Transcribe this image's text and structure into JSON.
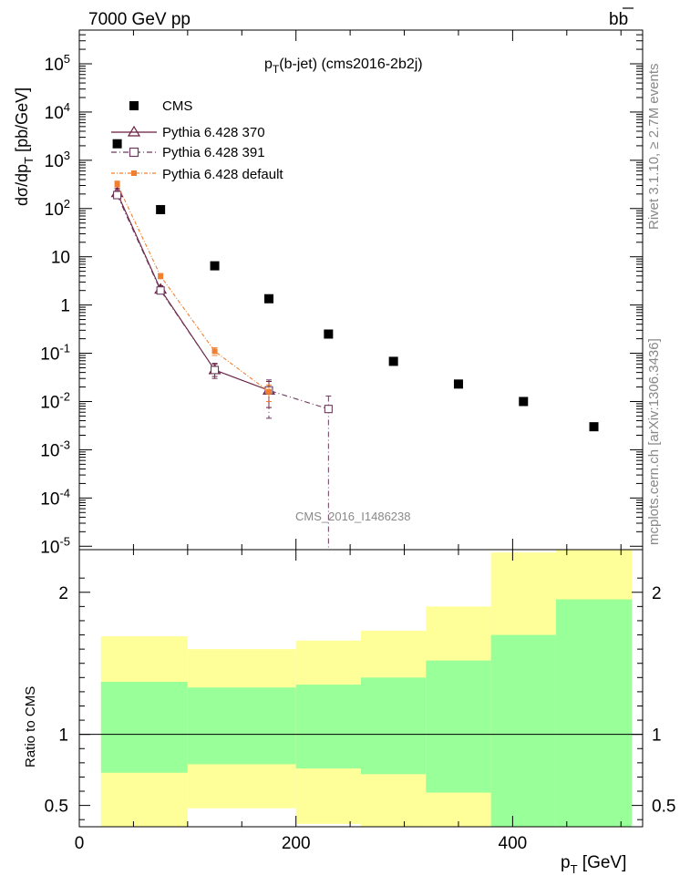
{
  "header": {
    "energy_label": "7000 GeV pp",
    "process_label": "bb",
    "plot_title_main": "p",
    "plot_title_sub": "T",
    "plot_title_rest": "(b-jet) (cms2016-2b2j)",
    "side_label_rivet": "Rivet 3.1.10, ≥ 2.7M events",
    "side_label_mcplots": "mcplots.cern.ch [arXiv:1306.3436]",
    "analysis_watermark": "CMS_2016_I1486238"
  },
  "axes": {
    "ylabel_main": "dσ/dp",
    "ylabel_main_sub": "T",
    "ylabel_main_unit": " [pb/GeV]",
    "ylabel_ratio": "Ratio to CMS",
    "xlabel": "p",
    "xlabel_sub": "T",
    "xlabel_unit": " [GeV]"
  },
  "legend": {
    "items": [
      {
        "name": "CMS",
        "color": "#000000"
      },
      {
        "name": "Pythia 6.428 370",
        "color": "#6b1a3c"
      },
      {
        "name": "Pythia 6.428 391",
        "color": "#6b3a5c"
      },
      {
        "name": "Pythia 6.428 default",
        "color": "#f08030"
      }
    ]
  },
  "chart_data": [
    {
      "type": "scatter",
      "title": "pT(b-jet) (cms2016-2b2j)",
      "xlabel": "pT [GeV]",
      "ylabel": "dσ/dpT [pb/GeV]",
      "yscale": "log",
      "xlim": [
        0,
        520
      ],
      "ylim": [
        8.5e-06,
        500000
      ],
      "x_ticks": [
        0,
        200,
        400
      ],
      "y_ticks": [
        {
          "v": 100000,
          "b": "10",
          "e": "5"
        },
        {
          "v": 10000,
          "b": "10",
          "e": "4"
        },
        {
          "v": 1000,
          "b": "10",
          "e": "3"
        },
        {
          "v": 100,
          "b": "10",
          "e": "2"
        },
        {
          "v": 10,
          "b": "10",
          "e": ""
        },
        {
          "v": 1,
          "b": "1",
          "e": ""
        },
        {
          "v": 0.1,
          "b": "10",
          "e": "-1"
        },
        {
          "v": 0.01,
          "b": "10",
          "e": "-2"
        },
        {
          "v": 0.001,
          "b": "10",
          "e": "-3"
        },
        {
          "v": 0.0001,
          "b": "10",
          "e": "-4"
        },
        {
          "v": 1e-05,
          "b": "10",
          "e": "-5"
        }
      ],
      "series": [
        {
          "name": "CMS",
          "marker": "filled-square",
          "color": "#000000",
          "x": [
            35,
            75,
            125,
            175,
            230,
            290,
            350,
            410,
            475
          ],
          "y": [
            2200,
            95,
            6.5,
            1.35,
            0.25,
            0.068,
            0.023,
            0.01,
            0.003
          ]
        },
        {
          "name": "Pythia 6.428 370",
          "marker": "open-triangle",
          "color": "#6b1a3c",
          "dash": "",
          "x": [
            35,
            75,
            125,
            175
          ],
          "y": [
            210,
            2.1,
            0.045,
            0.017
          ],
          "err_hi": [
            260,
            2.5,
            0.06,
            0.026
          ],
          "err_lo": [
            170,
            1.8,
            0.033,
            0.0075
          ]
        },
        {
          "name": "Pythia 6.428 391",
          "marker": "open-square",
          "color": "#6b3a5c",
          "dash": "6,3,1,3",
          "x": [
            35,
            75,
            125,
            175,
            230
          ],
          "y": [
            190,
            2.0,
            0.045,
            0.017,
            0.007
          ],
          "err_hi": [
            230,
            2.4,
            0.062,
            0.028,
            0.013
          ],
          "err_lo": [
            160,
            1.7,
            0.03,
            0.0045,
            8.5e-06
          ]
        },
        {
          "name": "Pythia 6.428 default",
          "marker": "filled-small-square",
          "color": "#f08030",
          "dash": "4,2,1,2",
          "x": [
            35,
            75,
            125,
            175
          ],
          "y": [
            320,
            4.0,
            0.11,
            0.016
          ],
          "err_hi": [
            370,
            4.5,
            0.13,
            0.022
          ],
          "err_lo": [
            280,
            3.5,
            0.09,
            0.01
          ]
        }
      ]
    },
    {
      "type": "area",
      "ylabel": "Ratio to CMS",
      "xlabel": "pT [GeV]",
      "xlim": [
        0,
        520
      ],
      "ylim": [
        0.35,
        2.3
      ],
      "x_ticks": [
        0,
        200,
        400
      ],
      "y_ticks": [
        0.5,
        1,
        2
      ],
      "reference_line": 1,
      "bins": [
        {
          "x0": 20,
          "x1": 100,
          "green_lo": 0.73,
          "green_hi": 1.37,
          "yellow_lo": 0.35,
          "yellow_hi": 1.69
        },
        {
          "x0": 100,
          "x1": 200,
          "green_lo": 0.79,
          "green_hi": 1.33,
          "yellow_lo": 0.48,
          "yellow_hi": 1.6
        },
        {
          "x0": 200,
          "x1": 260,
          "green_lo": 0.76,
          "green_hi": 1.35,
          "yellow_lo": 0.37,
          "yellow_hi": 1.66
        },
        {
          "x0": 260,
          "x1": 320,
          "green_lo": 0.72,
          "green_hi": 1.4,
          "yellow_lo": 0.35,
          "yellow_hi": 1.73
        },
        {
          "x0": 320,
          "x1": 380,
          "green_lo": 0.59,
          "green_hi": 1.52,
          "yellow_lo": 0.35,
          "yellow_hi": 1.9
        },
        {
          "x0": 380,
          "x1": 440,
          "green_lo": 0.35,
          "green_hi": 1.7,
          "yellow_lo": 0.35,
          "yellow_hi": 2.28
        },
        {
          "x0": 440,
          "x1": 510,
          "green_lo": 0.35,
          "green_hi": 1.95,
          "yellow_lo": 0.35,
          "yellow_hi": 2.3
        }
      ]
    }
  ]
}
